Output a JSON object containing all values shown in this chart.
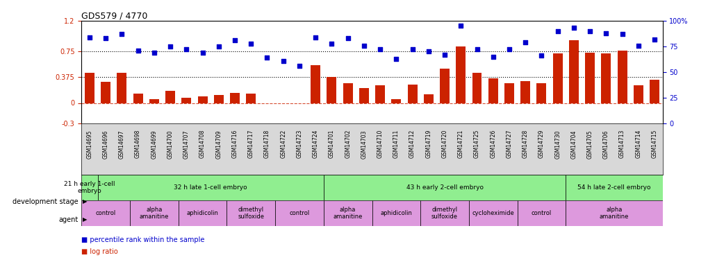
{
  "title": "GDS579 / 4770",
  "samples": [
    "GSM14695",
    "GSM14696",
    "GSM14697",
    "GSM14698",
    "GSM14699",
    "GSM14700",
    "GSM14707",
    "GSM14708",
    "GSM14709",
    "GSM14716",
    "GSM14717",
    "GSM14718",
    "GSM14722",
    "GSM14723",
    "GSM14724",
    "GSM14701",
    "GSM14702",
    "GSM14703",
    "GSM14710",
    "GSM14711",
    "GSM14712",
    "GSM14719",
    "GSM14720",
    "GSM14721",
    "GSM14725",
    "GSM14726",
    "GSM14727",
    "GSM14728",
    "GSM14729",
    "GSM14730",
    "GSM14704",
    "GSM14705",
    "GSM14706",
    "GSM14713",
    "GSM14714",
    "GSM14715"
  ],
  "log_ratio": [
    0.44,
    0.31,
    0.44,
    0.14,
    0.06,
    0.18,
    0.08,
    0.1,
    0.12,
    0.15,
    0.14,
    -0.01,
    -0.01,
    -0.01,
    0.55,
    0.38,
    0.29,
    0.22,
    0.26,
    0.06,
    0.27,
    0.13,
    0.5,
    0.83,
    0.44,
    0.36,
    0.29,
    0.32,
    0.29,
    0.72,
    0.92,
    0.73,
    0.72,
    0.76,
    0.26,
    0.34
  ],
  "percentile": [
    84,
    83,
    87,
    71,
    69,
    75,
    72,
    69,
    75,
    81,
    78,
    64,
    61,
    56,
    84,
    78,
    83,
    76,
    72,
    63,
    72,
    70,
    67,
    95,
    72,
    65,
    72,
    79,
    66,
    90,
    93,
    90,
    88,
    87,
    76,
    82
  ],
  "bar_color": "#cc2200",
  "scatter_color": "#0000cc",
  "ylim_left": [
    -0.3,
    1.2
  ],
  "ylim_right": [
    0,
    100
  ],
  "yticks_left": [
    -0.3,
    0,
    0.375,
    0.75,
    1.2
  ],
  "yticks_right": [
    0,
    25,
    50,
    75,
    100
  ],
  "hlines_dotted": [
    0.75,
    0.375
  ],
  "hline_zero": 0.0,
  "dev_stages": [
    {
      "label": "21 h early 1-cell\nembryo",
      "start": 0,
      "end": 0
    },
    {
      "label": "32 h late 1-cell embryo",
      "start": 1,
      "end": 14
    },
    {
      "label": "43 h early 2-cell embryo",
      "start": 15,
      "end": 29
    },
    {
      "label": "54 h late 2-cell embryo",
      "start": 30,
      "end": 35
    }
  ],
  "agents": [
    {
      "label": "control",
      "start": 0,
      "end": 2
    },
    {
      "label": "alpha\namanitine",
      "start": 3,
      "end": 5
    },
    {
      "label": "aphidicolin",
      "start": 6,
      "end": 8
    },
    {
      "label": "dimethyl\nsulfoxide",
      "start": 9,
      "end": 11
    },
    {
      "label": "control",
      "start": 12,
      "end": 14
    },
    {
      "label": "alpha\namanitine",
      "start": 15,
      "end": 17
    },
    {
      "label": "aphidicolin",
      "start": 18,
      "end": 20
    },
    {
      "label": "dimethyl\nsulfoxide",
      "start": 21,
      "end": 23
    },
    {
      "label": "cycloheximide",
      "start": 24,
      "end": 26
    },
    {
      "label": "control",
      "start": 27,
      "end": 29
    },
    {
      "label": "alpha\namanitine",
      "start": 30,
      "end": 35
    }
  ],
  "stage_color": "#90ee90",
  "agent_color": "#dd99dd",
  "xticklabel_bg": "#d8d8d8",
  "legend_bar_label": "log ratio",
  "legend_scatter_label": "percentile rank within the sample"
}
